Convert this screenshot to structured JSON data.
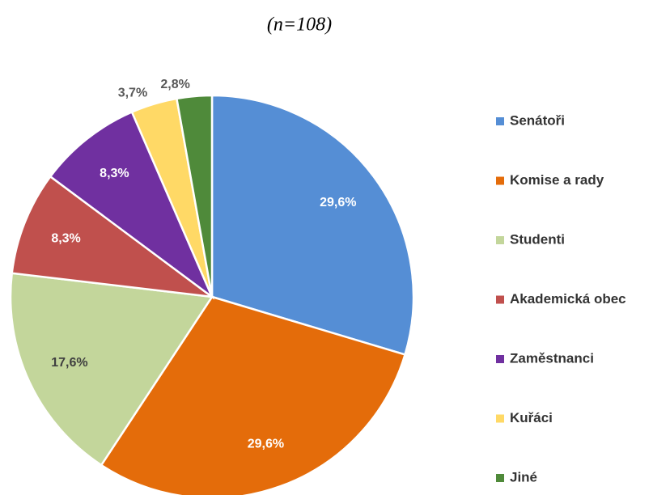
{
  "chart_data": {
    "type": "pie",
    "subtitle": "(n=108)",
    "categories": [
      "Senátoři",
      "Komise a rady",
      "Studenti",
      "Akademická obec",
      "Zaměstnanci",
      "Kuřáci",
      "Jiné"
    ],
    "values": [
      29.6,
      29.6,
      17.6,
      8.3,
      8.3,
      3.7,
      2.8
    ],
    "value_labels": [
      "29,6%",
      "29,6%",
      "17,6%",
      "8,3%",
      "8,3%",
      "3,7%",
      "2,8%"
    ],
    "colors": [
      "#558ed5",
      "#e46c0a",
      "#c3d69b",
      "#c0504d",
      "#7030a0",
      "#ffd966",
      "#4f8a3a"
    ],
    "legend": "right"
  }
}
